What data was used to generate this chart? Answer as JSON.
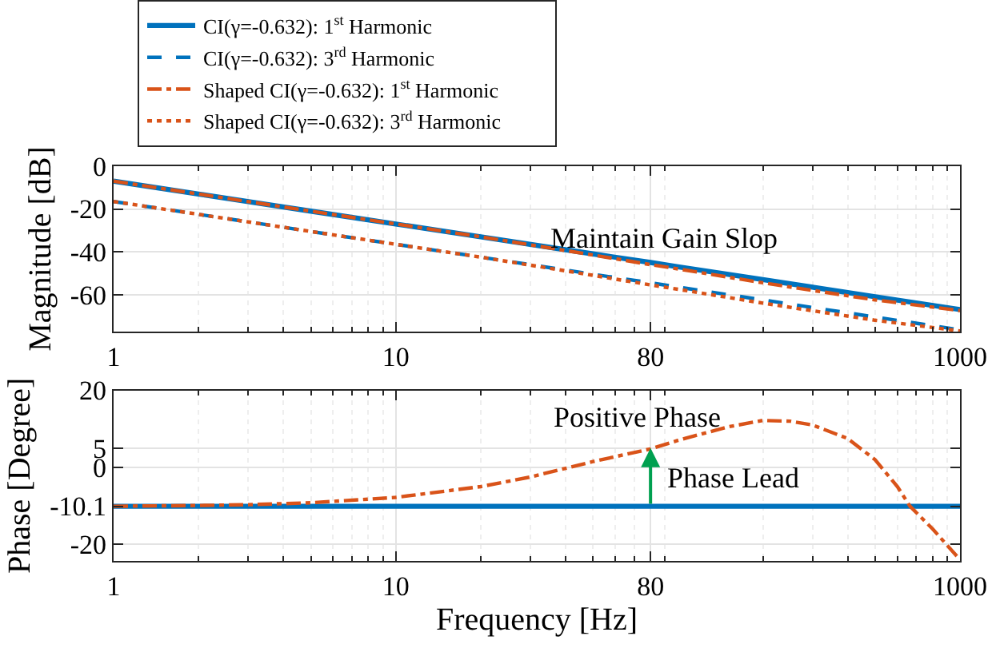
{
  "chart_data": [
    {
      "type": "line",
      "ylabel": "Magnitude [dB]",
      "x": [
        1,
        2,
        5,
        10,
        20,
        50,
        80,
        100,
        200,
        500,
        1000
      ],
      "log": "x",
      "xlim": [
        1,
        1000
      ],
      "xticks": [
        1,
        10,
        80,
        1000
      ],
      "ylim": [
        -77.3,
        0
      ],
      "yticks": [
        0,
        -20,
        -40,
        -60
      ],
      "grid": true,
      "legend": "top",
      "marker": "none",
      "annotations": [
        "Maintain Gain Slop"
      ],
      "series": [
        {
          "name": "CI(γ=-0.632): 1$^{st}$ Harmonic",
          "color": "#0072bd",
          "line_style": "solid",
          "values": [
            -7,
            -13,
            -21,
            -27,
            -33,
            -41,
            -45,
            -47,
            -53,
            -61,
            -67
          ]
        },
        {
          "name": "CI(γ=-0.632): 3$^{rd}$ Harmonic",
          "color": "#0072bd",
          "line_style": "dashed",
          "values": [
            -16.5,
            -22.5,
            -30.5,
            -36.5,
            -42.5,
            -50.5,
            -54.5,
            -56.5,
            -62.5,
            -70.5,
            -76.5
          ]
        },
        {
          "name": "Shaped CI(γ=-0.632): 1$^{st}$ Harmonic",
          "color": "#d95319",
          "line_style": "dashdot",
          "values": [
            -7,
            -13,
            -21,
            -27,
            -33,
            -41.5,
            -46,
            -48,
            -54.5,
            -62.5,
            -67.5
          ]
        },
        {
          "name": "Shaped CI(γ=-0.632): 3$^{rd}$ Harmonic",
          "color": "#d95319",
          "line_style": "dotted",
          "values": [
            -16.5,
            -22.5,
            -30.5,
            -36.5,
            -42.5,
            -51,
            -55.5,
            -57.5,
            -64,
            -72,
            -77
          ]
        }
      ]
    },
    {
      "type": "line",
      "xlabel": "Frequency [Hz]",
      "ylabel": "Phase [Degree]",
      "x": [
        1,
        2,
        3,
        5,
        10,
        20,
        30,
        50,
        80,
        100,
        150,
        200,
        250,
        300,
        400,
        500,
        600,
        665,
        800,
        1000
      ],
      "log": "x",
      "xlim": [
        1,
        1000
      ],
      "xticks": [
        1,
        10,
        80,
        1000
      ],
      "ylim": [
        -24.3,
        20
      ],
      "yticks": [
        20,
        5,
        0,
        -10.1,
        -20
      ],
      "grid": true,
      "legend": false,
      "marker": "none",
      "annotations": [
        "Positive Phase",
        {
          "text": "Phase Lead",
          "x": 80,
          "y": 5
        }
      ],
      "series": [
        {
          "color": "#0072bd",
          "line_style": "solid",
          "values": [
            -10.1,
            -10.1,
            -10.1,
            -10.1,
            -10.1,
            -10.1,
            -10.1,
            -10.1,
            -10.1,
            -10.1,
            -10.1,
            -10.1,
            -10.1,
            -10.1,
            -10.1,
            -10.1,
            -10.1,
            -10.1,
            -10.1,
            -10.1
          ]
        },
        {
          "color": "#d95319",
          "line_style": "dashdot",
          "values": [
            -10.1,
            -9.9,
            -9.7,
            -9.2,
            -7.8,
            -5,
            -2.5,
            1.5,
            4.8,
            7,
            10.5,
            12.2,
            12,
            11,
            7.5,
            2,
            -5,
            -10.1,
            -16,
            -24
          ]
        }
      ]
    }
  ]
}
